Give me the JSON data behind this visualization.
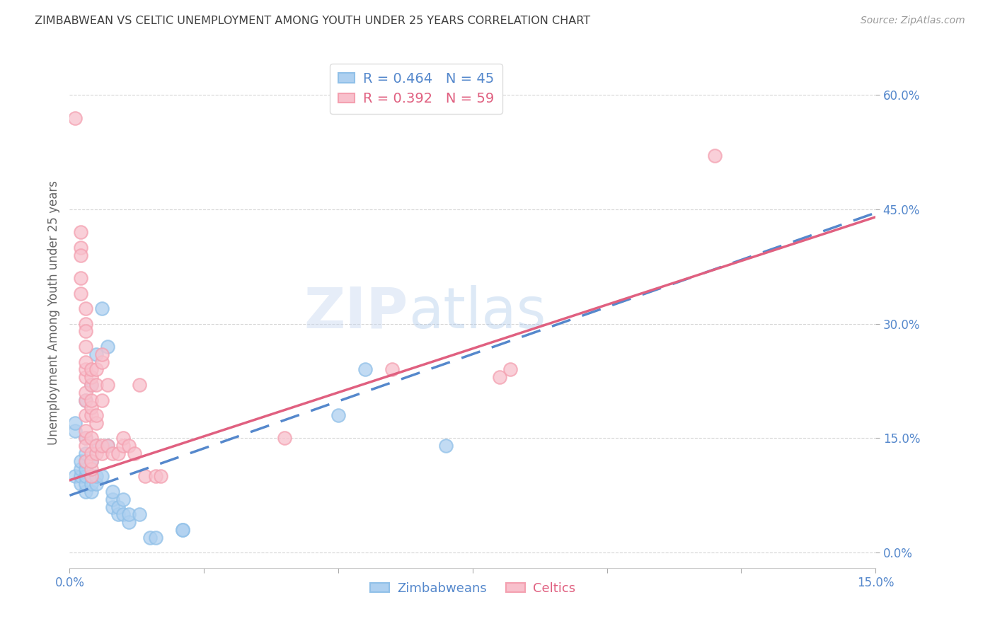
{
  "title": "ZIMBABWEAN VS CELTIC UNEMPLOYMENT AMONG YOUTH UNDER 25 YEARS CORRELATION CHART",
  "source": "Source: ZipAtlas.com",
  "ylabel": "Unemployment Among Youth under 25 years",
  "xlim": [
    0.0,
    0.15
  ],
  "ylim": [
    -0.02,
    0.65
  ],
  "xticks": [
    0.0,
    0.025,
    0.05,
    0.075,
    0.1,
    0.125,
    0.15
  ],
  "yticks": [
    0.0,
    0.15,
    0.3,
    0.45,
    0.6
  ],
  "ytick_labels": [
    "0.0%",
    "15.0%",
    "30.0%",
    "45.0%",
    "60.0%"
  ],
  "xtick_labels_show": [
    "0.0%",
    "",
    "",
    "",
    "",
    "",
    "15.0%"
  ],
  "watermark_zip": "ZIP",
  "watermark_atlas": "atlas",
  "legend_zim_r": "R = 0.464",
  "legend_zim_n": "N = 45",
  "legend_celt_r": "R = 0.392",
  "legend_celt_n": "N = 59",
  "zim_color": "#90c0e8",
  "celt_color": "#f4a0b0",
  "zim_fill": "#aed0f0",
  "celt_fill": "#f8c0cc",
  "zim_line_color": "#5588cc",
  "celt_line_color": "#e06080",
  "grid_color": "#cccccc",
  "title_color": "#404040",
  "axis_tick_color": "#5588cc",
  "background_color": "#ffffff",
  "zim_R": 0.464,
  "celt_R": 0.392,
  "zim_line_intercept": 0.075,
  "zim_line_slope": 2.47,
  "celt_line_intercept": 0.095,
  "celt_line_slope": 2.3,
  "zim_points": [
    [
      0.001,
      0.1
    ],
    [
      0.001,
      0.16
    ],
    [
      0.001,
      0.17
    ],
    [
      0.002,
      0.09
    ],
    [
      0.002,
      0.1
    ],
    [
      0.002,
      0.11
    ],
    [
      0.002,
      0.12
    ],
    [
      0.003,
      0.08
    ],
    [
      0.003,
      0.09
    ],
    [
      0.003,
      0.1
    ],
    [
      0.003,
      0.11
    ],
    [
      0.003,
      0.12
    ],
    [
      0.003,
      0.13
    ],
    [
      0.003,
      0.15
    ],
    [
      0.003,
      0.2
    ],
    [
      0.004,
      0.08
    ],
    [
      0.004,
      0.09
    ],
    [
      0.004,
      0.1
    ],
    [
      0.004,
      0.12
    ],
    [
      0.004,
      0.22
    ],
    [
      0.005,
      0.09
    ],
    [
      0.005,
      0.1
    ],
    [
      0.005,
      0.14
    ],
    [
      0.005,
      0.26
    ],
    [
      0.006,
      0.1
    ],
    [
      0.006,
      0.32
    ],
    [
      0.007,
      0.27
    ],
    [
      0.007,
      0.14
    ],
    [
      0.008,
      0.06
    ],
    [
      0.008,
      0.07
    ],
    [
      0.008,
      0.08
    ],
    [
      0.009,
      0.05
    ],
    [
      0.009,
      0.06
    ],
    [
      0.01,
      0.05
    ],
    [
      0.01,
      0.07
    ],
    [
      0.011,
      0.04
    ],
    [
      0.011,
      0.05
    ],
    [
      0.013,
      0.05
    ],
    [
      0.015,
      0.02
    ],
    [
      0.016,
      0.02
    ],
    [
      0.021,
      0.03
    ],
    [
      0.021,
      0.03
    ],
    [
      0.05,
      0.18
    ],
    [
      0.055,
      0.24
    ],
    [
      0.07,
      0.14
    ]
  ],
  "celt_points": [
    [
      0.001,
      0.57
    ],
    [
      0.002,
      0.4
    ],
    [
      0.002,
      0.42
    ],
    [
      0.002,
      0.36
    ],
    [
      0.002,
      0.39
    ],
    [
      0.002,
      0.34
    ],
    [
      0.003,
      0.3
    ],
    [
      0.003,
      0.32
    ],
    [
      0.003,
      0.27
    ],
    [
      0.003,
      0.29
    ],
    [
      0.003,
      0.23
    ],
    [
      0.003,
      0.24
    ],
    [
      0.003,
      0.25
    ],
    [
      0.003,
      0.2
    ],
    [
      0.003,
      0.21
    ],
    [
      0.003,
      0.18
    ],
    [
      0.003,
      0.15
    ],
    [
      0.003,
      0.16
    ],
    [
      0.003,
      0.12
    ],
    [
      0.003,
      0.14
    ],
    [
      0.004,
      0.22
    ],
    [
      0.004,
      0.23
    ],
    [
      0.004,
      0.24
    ],
    [
      0.004,
      0.18
    ],
    [
      0.004,
      0.19
    ],
    [
      0.004,
      0.2
    ],
    [
      0.004,
      0.13
    ],
    [
      0.004,
      0.15
    ],
    [
      0.004,
      0.1
    ],
    [
      0.004,
      0.11
    ],
    [
      0.004,
      0.12
    ],
    [
      0.005,
      0.22
    ],
    [
      0.005,
      0.24
    ],
    [
      0.005,
      0.17
    ],
    [
      0.005,
      0.18
    ],
    [
      0.005,
      0.13
    ],
    [
      0.005,
      0.14
    ],
    [
      0.006,
      0.25
    ],
    [
      0.006,
      0.26
    ],
    [
      0.006,
      0.2
    ],
    [
      0.006,
      0.13
    ],
    [
      0.006,
      0.14
    ],
    [
      0.007,
      0.22
    ],
    [
      0.007,
      0.14
    ],
    [
      0.008,
      0.13
    ],
    [
      0.009,
      0.13
    ],
    [
      0.01,
      0.14
    ],
    [
      0.01,
      0.15
    ],
    [
      0.011,
      0.14
    ],
    [
      0.012,
      0.13
    ],
    [
      0.013,
      0.22
    ],
    [
      0.014,
      0.1
    ],
    [
      0.016,
      0.1
    ],
    [
      0.017,
      0.1
    ],
    [
      0.04,
      0.15
    ],
    [
      0.06,
      0.24
    ],
    [
      0.08,
      0.23
    ],
    [
      0.082,
      0.24
    ],
    [
      0.12,
      0.52
    ]
  ]
}
